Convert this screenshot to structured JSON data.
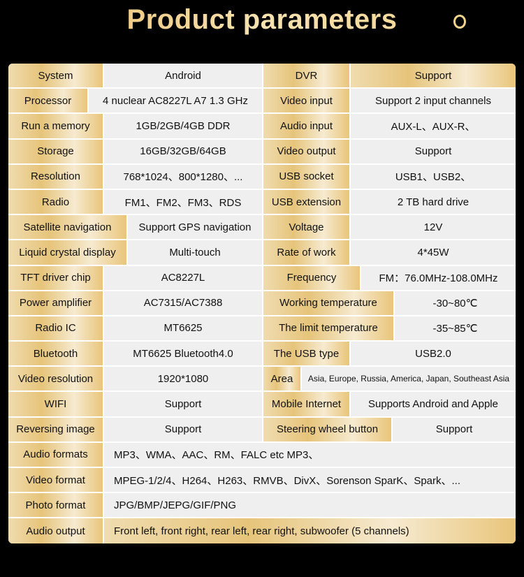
{
  "title": "Product parameters",
  "rows": [
    [
      "System",
      "Android",
      "DVR",
      "Support"
    ],
    [
      "Processor",
      "4 nuclear   AC8227L A7 1.3 GHz",
      "Video input",
      "Support 2 input channels"
    ],
    [
      "Run a memory",
      "1GB/2GB/4GB  DDR",
      "Audio input",
      "AUX-L、AUX-R、"
    ],
    [
      "Storage",
      "16GB/32GB/64GB",
      "Video output",
      "Support"
    ],
    [
      "Resolution",
      "768*1024、800*1280、...",
      "USB socket",
      "USB1、USB2、"
    ],
    [
      "Radio",
      "FM1、FM2、FM3、RDS",
      "USB extension",
      "2 TB hard drive"
    ],
    [
      "Satellite navigation",
      "Support GPS navigation",
      "Voltage",
      "12V"
    ],
    [
      "Liquid crystal display",
      "Multi-touch",
      "Rate of work",
      "4*45W"
    ],
    [
      "TFT driver chip",
      "AC8227L",
      "Frequency",
      "FM：76.0MHz-108.0MHz"
    ],
    [
      "Power amplifier",
      "AC7315/AC7388",
      "Working temperature",
      "-30~80℃"
    ],
    [
      "Radio IC",
      "MT6625",
      "The limit temperature",
      "-35~85℃"
    ],
    [
      "Bluetooth",
      "MT6625 Bluetooth4.0",
      "The USB type",
      "USB2.0"
    ],
    [
      "Video resolution",
      "1920*1080",
      "Area",
      "Asia, Europe, Russia, America, Japan, Southeast Asia"
    ],
    [
      "WIFI",
      "Support",
      "Mobile Internet",
      "Supports Android and Apple"
    ],
    [
      "Reversing image",
      "Support",
      "Steering wheel button",
      "Support"
    ],
    [
      "Audio formats",
      "MP3、WMA、AAC、RM、FALC etc MP3、"
    ],
    [
      "Video format",
      "MPEG-1/2/4、H264、H263、RMVB、DivX、Sorenson SparK、Spark、..."
    ],
    [
      "Photo format",
      "JPG/BMP/JEPG/GIF/PNG"
    ],
    [
      "Audio output",
      "Front left, front right, rear left, rear right, subwoofer (5 channels)"
    ]
  ],
  "colors": {
    "background": "#000000",
    "gold": "#e6c47a",
    "cell": "#efefef"
  }
}
